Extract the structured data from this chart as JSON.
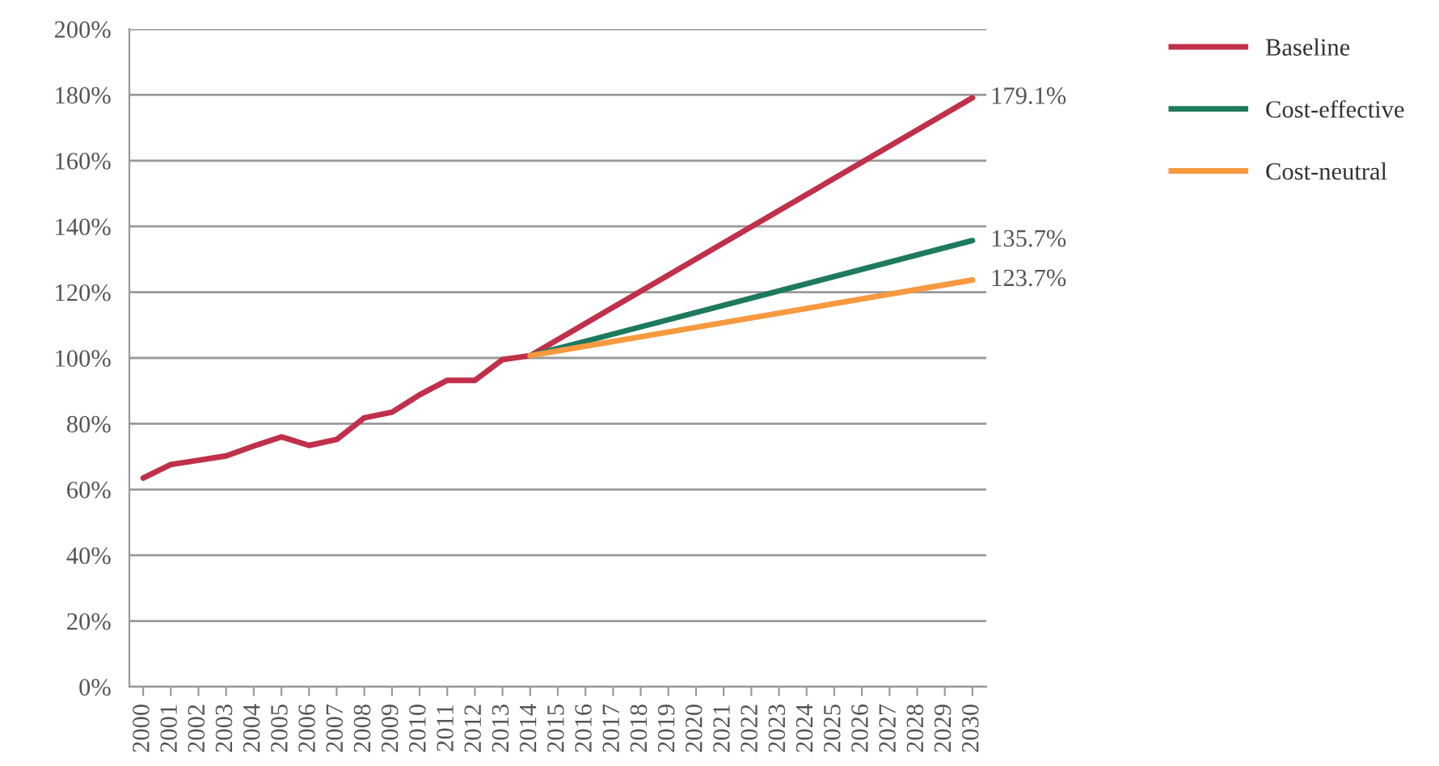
{
  "chart_data": {
    "type": "line",
    "xlim": [
      1999.5,
      2030.5
    ],
    "xticks": [
      2000,
      2001,
      2002,
      2003,
      2004,
      2005,
      2006,
      2007,
      2008,
      2009,
      2010,
      2011,
      2012,
      2013,
      2014,
      2015,
      2016,
      2017,
      2018,
      2019,
      2020,
      2021,
      2022,
      2023,
      2024,
      2025,
      2026,
      2027,
      2028,
      2029,
      2030
    ],
    "ylim": [
      0,
      200
    ],
    "yticks": [
      {
        "value": 0,
        "label": "0%"
      },
      {
        "value": 20,
        "label": "20%"
      },
      {
        "value": 40,
        "label": "40%"
      },
      {
        "value": 60,
        "label": "60%"
      },
      {
        "value": 80,
        "label": "80%"
      },
      {
        "value": 100,
        "label": "100%"
      },
      {
        "value": 120,
        "label": "120%"
      },
      {
        "value": 140,
        "label": "140%"
      },
      {
        "value": 160,
        "label": "160%"
      },
      {
        "value": 180,
        "label": "180%"
      },
      {
        "value": 200,
        "label": "200%"
      }
    ],
    "grid": "y",
    "legend": "top right",
    "marker": "none",
    "line_style": "solid",
    "series": [
      {
        "name": "Baseline",
        "color": "#c0304a",
        "x": [
          2000,
          2001,
          2002,
          2003,
          2004,
          2005,
          2006,
          2007,
          2008,
          2009,
          2010,
          2011,
          2012,
          2013,
          2014,
          2030
        ],
        "values": [
          63.5,
          67.6,
          68.9,
          70.2,
          73.2,
          76.0,
          73.4,
          75.2,
          81.8,
          83.5,
          88.8,
          93.2,
          93.2,
          99.5,
          100.7,
          179.1
        ],
        "value_labels": [
          null,
          null,
          null,
          null,
          null,
          null,
          null,
          null,
          null,
          null,
          null,
          null,
          null,
          null,
          null,
          "179.1%"
        ]
      },
      {
        "name": "Cost-effective",
        "color": "#1e7a5e",
        "x": [
          2014,
          2030
        ],
        "values": [
          100.7,
          135.7
        ],
        "value_labels": [
          null,
          "135.7%"
        ]
      },
      {
        "name": "Cost-neutral",
        "color": "#f7993e",
        "x": [
          2014,
          2030
        ],
        "values": [
          100.7,
          123.7
        ],
        "value_labels": [
          null,
          "123.7%"
        ]
      }
    ]
  }
}
